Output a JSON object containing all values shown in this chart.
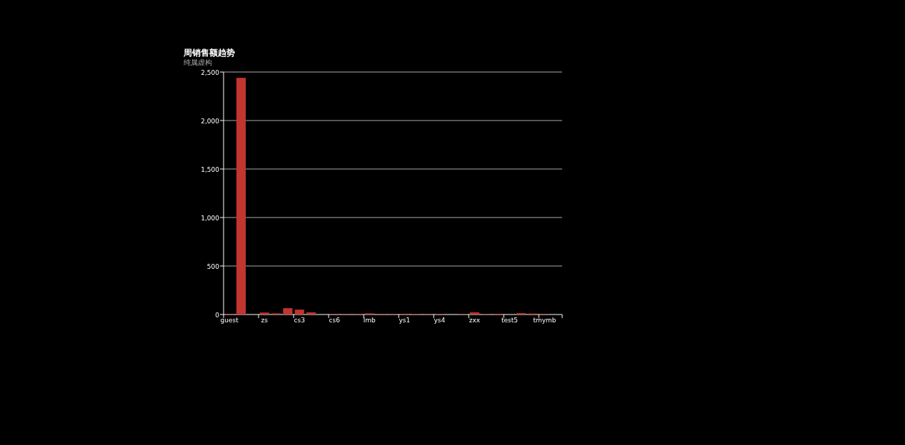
{
  "chart_data": {
    "type": "bar",
    "title": "周销售额趋势",
    "subtitle": "纯属虚构",
    "categories": [
      "guest",
      null,
      null,
      "zs",
      null,
      null,
      "cs3",
      null,
      null,
      "cs6",
      null,
      null,
      "lmb",
      null,
      null,
      "ys1",
      null,
      null,
      "ys4",
      null,
      null,
      "zxx",
      null,
      null,
      "test5",
      null,
      null,
      "tmymb",
      null
    ],
    "values": [
      6,
      2440,
      0,
      20,
      12,
      65,
      50,
      22,
      0,
      5,
      5,
      5,
      12,
      5,
      5,
      8,
      7,
      5,
      5,
      0,
      5,
      22,
      6,
      8,
      0,
      14,
      10,
      5,
      0
    ],
    "color": "#c23531",
    "ylim": [
      0,
      2500
    ],
    "yticks": [
      {
        "value": 0,
        "label": "0"
      },
      {
        "value": 500,
        "label": "500"
      },
      {
        "value": 1000,
        "label": "1,000"
      },
      {
        "value": 1500,
        "label": "1,500"
      },
      {
        "value": 2000,
        "label": "2,000"
      },
      {
        "value": 2500,
        "label": "2,500"
      }
    ],
    "grid": "y"
  }
}
